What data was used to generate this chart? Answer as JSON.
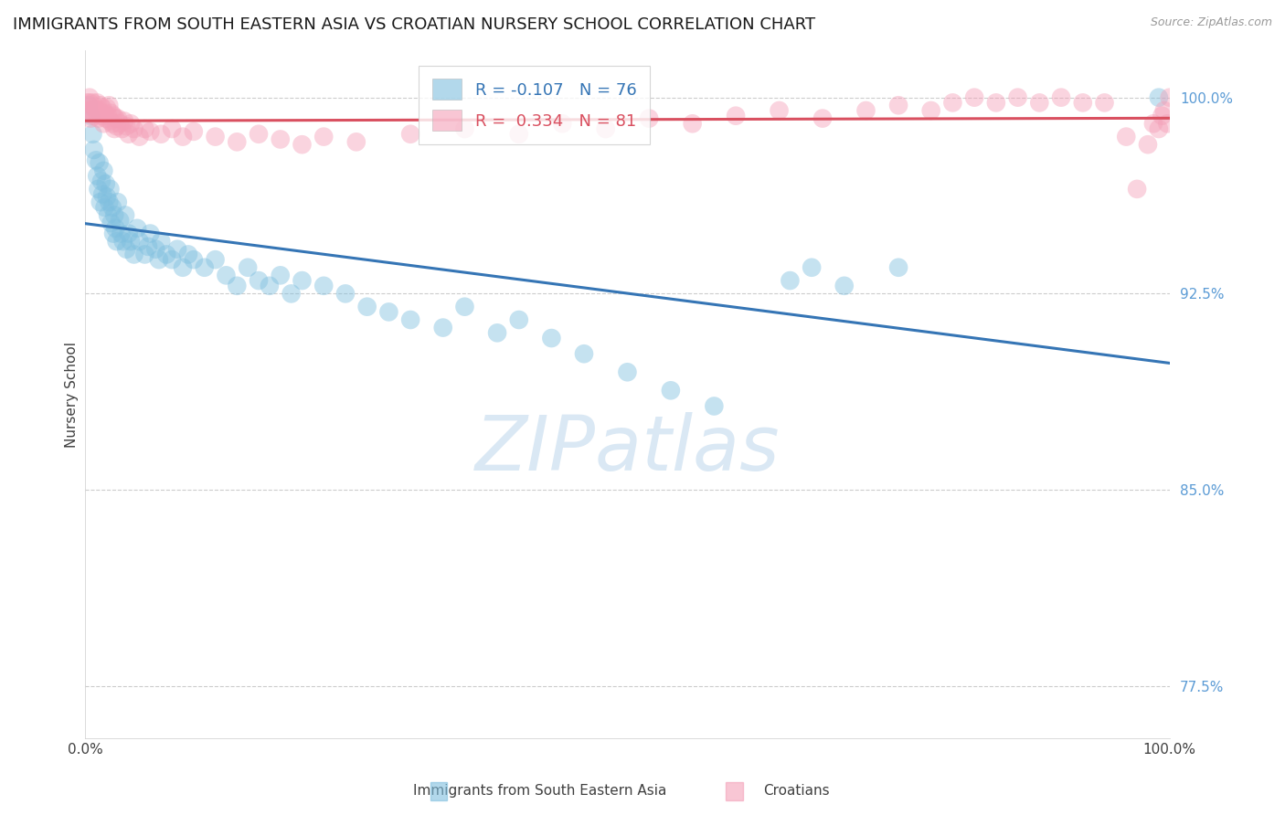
{
  "title": "IMMIGRANTS FROM SOUTH EASTERN ASIA VS CROATIAN NURSERY SCHOOL CORRELATION CHART",
  "source": "Source: ZipAtlas.com",
  "ylabel": "Nursery School",
  "yticks": [
    0.775,
    0.85,
    0.925,
    1.0
  ],
  "ytick_labels": [
    "77.5%",
    "85.0%",
    "92.5%",
    "100.0%"
  ],
  "xlim": [
    0.0,
    1.0
  ],
  "ylim": [
    0.755,
    1.018
  ],
  "blue_R": -0.107,
  "blue_N": 76,
  "pink_R": 0.334,
  "pink_N": 81,
  "blue_color": "#7fbfdf",
  "pink_color": "#f4a0b8",
  "blue_line_color": "#3575b5",
  "pink_line_color": "#d95060",
  "background_color": "#ffffff",
  "watermark": "ZIPatlas",
  "watermark_color": "#dae8f4",
  "title_fontsize": 13,
  "axis_label_fontsize": 11,
  "tick_label_fontsize": 11,
  "blue_x": [
    0.003,
    0.005,
    0.007,
    0.008,
    0.01,
    0.011,
    0.012,
    0.013,
    0.014,
    0.015,
    0.016,
    0.017,
    0.018,
    0.019,
    0.02,
    0.021,
    0.022,
    0.023,
    0.024,
    0.025,
    0.026,
    0.027,
    0.028,
    0.029,
    0.03,
    0.032,
    0.033,
    0.035,
    0.037,
    0.038,
    0.04,
    0.042,
    0.045,
    0.048,
    0.05,
    0.055,
    0.058,
    0.06,
    0.065,
    0.068,
    0.07,
    0.075,
    0.08,
    0.085,
    0.09,
    0.095,
    0.1,
    0.11,
    0.12,
    0.13,
    0.14,
    0.15,
    0.16,
    0.17,
    0.18,
    0.19,
    0.2,
    0.22,
    0.24,
    0.26,
    0.28,
    0.3,
    0.33,
    0.35,
    0.38,
    0.4,
    0.43,
    0.46,
    0.5,
    0.54,
    0.58,
    0.65,
    0.7,
    0.75,
    0.99,
    0.67
  ],
  "blue_y": [
    0.997,
    0.993,
    0.986,
    0.98,
    0.976,
    0.97,
    0.965,
    0.975,
    0.96,
    0.968,
    0.963,
    0.972,
    0.958,
    0.967,
    0.962,
    0.955,
    0.96,
    0.965,
    0.952,
    0.958,
    0.948,
    0.955,
    0.95,
    0.945,
    0.96,
    0.953,
    0.948,
    0.945,
    0.955,
    0.942,
    0.948,
    0.945,
    0.94,
    0.95,
    0.945,
    0.94,
    0.943,
    0.948,
    0.942,
    0.938,
    0.945,
    0.94,
    0.938,
    0.942,
    0.935,
    0.94,
    0.938,
    0.935,
    0.938,
    0.932,
    0.928,
    0.935,
    0.93,
    0.928,
    0.932,
    0.925,
    0.93,
    0.928,
    0.925,
    0.92,
    0.918,
    0.915,
    0.912,
    0.92,
    0.91,
    0.915,
    0.908,
    0.902,
    0.895,
    0.888,
    0.882,
    0.93,
    0.928,
    0.935,
    1.0,
    0.935
  ],
  "pink_x": [
    0.002,
    0.003,
    0.004,
    0.005,
    0.006,
    0.007,
    0.008,
    0.009,
    0.01,
    0.011,
    0.012,
    0.013,
    0.014,
    0.015,
    0.016,
    0.017,
    0.018,
    0.019,
    0.02,
    0.021,
    0.022,
    0.023,
    0.024,
    0.025,
    0.026,
    0.027,
    0.028,
    0.029,
    0.03,
    0.032,
    0.034,
    0.036,
    0.038,
    0.04,
    0.042,
    0.045,
    0.05,
    0.055,
    0.06,
    0.07,
    0.08,
    0.09,
    0.1,
    0.12,
    0.14,
    0.16,
    0.18,
    0.2,
    0.22,
    0.25,
    0.3,
    0.35,
    0.4,
    0.44,
    0.48,
    0.52,
    0.56,
    0.6,
    0.64,
    0.68,
    0.72,
    0.75,
    0.78,
    0.8,
    0.82,
    0.84,
    0.86,
    0.88,
    0.9,
    0.92,
    0.94,
    0.96,
    0.97,
    0.98,
    0.985,
    0.99,
    0.993,
    0.995,
    0.998,
    1.0,
    0.004
  ],
  "pink_y": [
    0.998,
    0.995,
    0.998,
    0.992,
    0.995,
    0.998,
    0.993,
    0.996,
    0.995,
    0.998,
    0.992,
    0.995,
    0.997,
    0.993,
    0.996,
    0.99,
    0.994,
    0.992,
    0.996,
    0.993,
    0.997,
    0.991,
    0.994,
    0.99,
    0.993,
    0.988,
    0.992,
    0.989,
    0.992,
    0.99,
    0.988,
    0.991,
    0.989,
    0.986,
    0.99,
    0.988,
    0.985,
    0.988,
    0.987,
    0.986,
    0.988,
    0.985,
    0.987,
    0.985,
    0.983,
    0.986,
    0.984,
    0.982,
    0.985,
    0.983,
    0.986,
    0.988,
    0.986,
    0.99,
    0.988,
    0.992,
    0.99,
    0.993,
    0.995,
    0.992,
    0.995,
    0.997,
    0.995,
    0.998,
    1.0,
    0.998,
    1.0,
    0.998,
    1.0,
    0.998,
    0.998,
    0.985,
    0.965,
    0.982,
    0.99,
    0.988,
    0.993,
    0.995,
    0.99,
    1.0,
    1.0
  ]
}
